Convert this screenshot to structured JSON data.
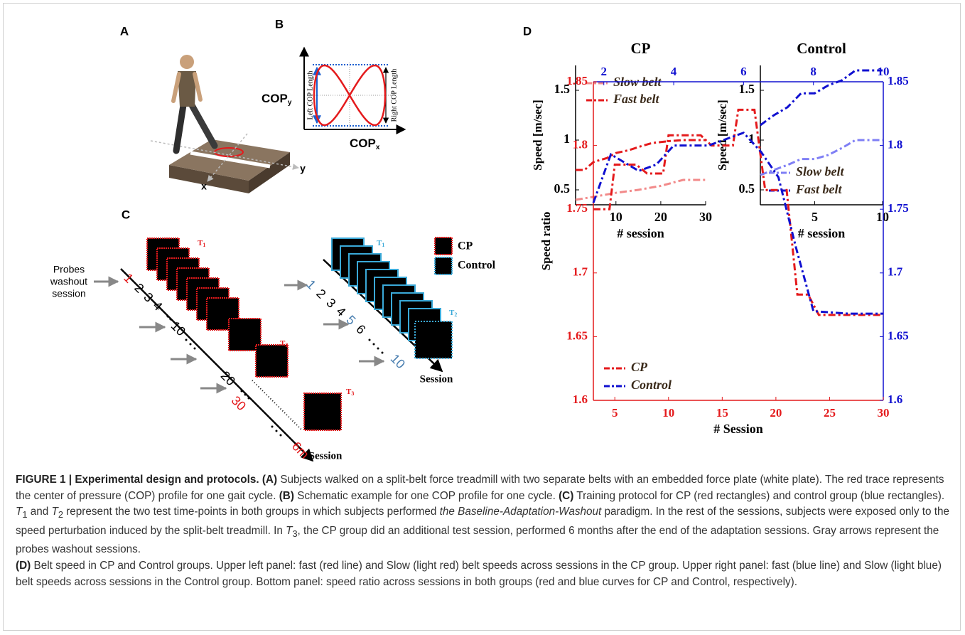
{
  "panels": {
    "A": {
      "label": "A",
      "x": "x",
      "y": "y"
    },
    "B": {
      "label": "B",
      "copy": {
        "t": "COP",
        "sub": "y"
      },
      "copx": {
        "t": "COP",
        "sub": "x"
      },
      "left": "Left COP Length",
      "right": "Right COP Length"
    },
    "C": {
      "label": "C",
      "probes": [
        "Probes",
        "washout",
        "session"
      ],
      "red_sessions": [
        "1",
        "2",
        "3",
        "4",
        "10",
        "20",
        "30",
        "6m"
      ],
      "blue_sessions": [
        "1",
        "2",
        "3",
        "4",
        "5",
        "6",
        "10"
      ],
      "red_times": [
        {
          "t": "T",
          "n": "1"
        },
        {
          "t": "T",
          "n": "2"
        },
        {
          "t": "T",
          "n": "3"
        }
      ],
      "blue_times": [
        {
          "t": "T",
          "n": "1"
        },
        {
          "t": "T",
          "n": "2"
        }
      ],
      "red_axis": "Session",
      "blue_axis": "Session",
      "legend": [
        "CP",
        "Control"
      ]
    },
    "D": {
      "label": "D"
    }
  },
  "chart_data": [
    {
      "type": "line",
      "title": "CP",
      "xlabel": "# session",
      "ylabel": "Speed [m/sec]",
      "xlim": [
        1,
        30
      ],
      "xticks": [
        10,
        20,
        30
      ],
      "ylim": [
        0.35,
        1.75
      ],
      "yticks": [
        0.5,
        1,
        1.5
      ],
      "legend": "upper left",
      "series": [
        {
          "name": "Slow belt",
          "color": "#f28a8a",
          "x": [
            1,
            5,
            10,
            15,
            20,
            25,
            30
          ],
          "values": [
            0.4,
            0.43,
            0.47,
            0.5,
            0.54,
            0.6,
            0.6
          ]
        },
        {
          "name": "Fast belt",
          "color": "#e41a1c",
          "x": [
            1,
            3,
            5,
            8,
            10,
            13,
            15,
            18,
            20,
            22,
            25,
            30
          ],
          "values": [
            0.7,
            0.7,
            0.78,
            0.82,
            0.87,
            0.9,
            0.93,
            0.97,
            0.98,
            0.99,
            1.0,
            1.0
          ]
        }
      ]
    },
    {
      "type": "line",
      "title": "Control",
      "xlabel": "# session",
      "ylabel": "Speed [m/sec]",
      "xlim": [
        1,
        10
      ],
      "xticks": [
        5,
        10
      ],
      "ylim": [
        0.35,
        1.75
      ],
      "yticks": [
        0.5,
        1,
        1.5
      ],
      "legend": "lower right",
      "series": [
        {
          "name": "Slow belt",
          "color": "#7f7ff5",
          "x": [
            1,
            2,
            3,
            4,
            5,
            6,
            7,
            8,
            9,
            10
          ],
          "values": [
            0.65,
            0.7,
            0.75,
            0.81,
            0.81,
            0.85,
            0.92,
            1.0,
            1.0,
            1.0
          ]
        },
        {
          "name": "Fast belt",
          "color": "#1010d0",
          "x": [
            1,
            2,
            3,
            4,
            5,
            6,
            7,
            8,
            9,
            10
          ],
          "values": [
            1.15,
            1.25,
            1.33,
            1.47,
            1.47,
            1.55,
            1.6,
            1.7,
            1.7,
            1.7
          ]
        }
      ]
    },
    {
      "type": "line",
      "xlabel": "# Session",
      "ylabel": "Speed ratio",
      "xlim": [
        3,
        30
      ],
      "xticks": [
        5,
        10,
        15,
        20,
        25,
        30
      ],
      "x2lim": [
        1.7,
        10
      ],
      "x2ticks": [
        2,
        4,
        6,
        8,
        10
      ],
      "ylim": [
        1.6,
        1.85
      ],
      "yticks": [
        1.6,
        1.65,
        1.7,
        1.75,
        1.8,
        1.85
      ],
      "y2lim": [
        1.6,
        1.85
      ],
      "y2ticks": [
        1.6,
        1.65,
        1.7,
        1.75,
        1.8,
        1.85
      ],
      "legend": "lower left",
      "series": [
        {
          "name": "CP",
          "color": "#e41a1c",
          "x": [
            3,
            4.5,
            5,
            7,
            8,
            9.5,
            10,
            13,
            14,
            16,
            16.5,
            18,
            19,
            21,
            22,
            23,
            24,
            30
          ],
          "values": [
            1.75,
            1.75,
            1.785,
            1.785,
            1.778,
            1.778,
            1.808,
            1.808,
            1.8,
            1.8,
            1.828,
            1.828,
            1.765,
            1.765,
            1.683,
            1.683,
            1.667,
            1.667
          ]
        },
        {
          "name": "Control",
          "color": "#1010d0",
          "axis": "y2",
          "xaxis": "x2",
          "x": [
            1.7,
            2.2,
            3,
            3.5,
            4,
            5,
            6,
            6.5,
            7,
            7.5,
            8,
            9,
            10
          ],
          "values": [
            1.755,
            1.793,
            1.78,
            1.785,
            1.8,
            1.8,
            1.81,
            1.795,
            1.775,
            1.72,
            1.67,
            1.668,
            1.668
          ]
        }
      ]
    }
  ],
  "caption": [
    "FIGURE 1 | Experimental design and protocols.",
    " (A)",
    " Subjects walked on a split-belt force treadmill with two separate belts with an embedded force plate (white plate). The red trace represents the center of pressure (COP) profile for one gait cycle. ",
    "(B)",
    " Schematic example for one COP profile for one cycle. ",
    "(C)",
    " Training protocol for CP (red rectangles) and control group (blue rectangles). ",
    "T",
    "1",
    " and ",
    "T",
    "2",
    " represent the two test time-points in both groups in which subjects performed ",
    "the Baseline-Adaptation-Washout",
    " paradigm. In the rest of the sessions, subjects were exposed only to the speed perturbation induced by the split-belt treadmill. In ",
    "T",
    "3",
    ", the CP group did an additional test session, performed 6 months after the end of the adaptation sessions. Gray arrows represent the probes washout sessions.",
    "(D)",
    " Belt speed in CP and Control groups. Upper left panel: fast (red line) and Slow (light red) belt speeds across sessions in the CP group. Upper right panel: fast (blue line) and Slow (light blue) belt speeds across sessions in the Control group. Bottom panel: speed ratio across sessions in both groups (red and blue curves for CP and Control, respectively)."
  ]
}
